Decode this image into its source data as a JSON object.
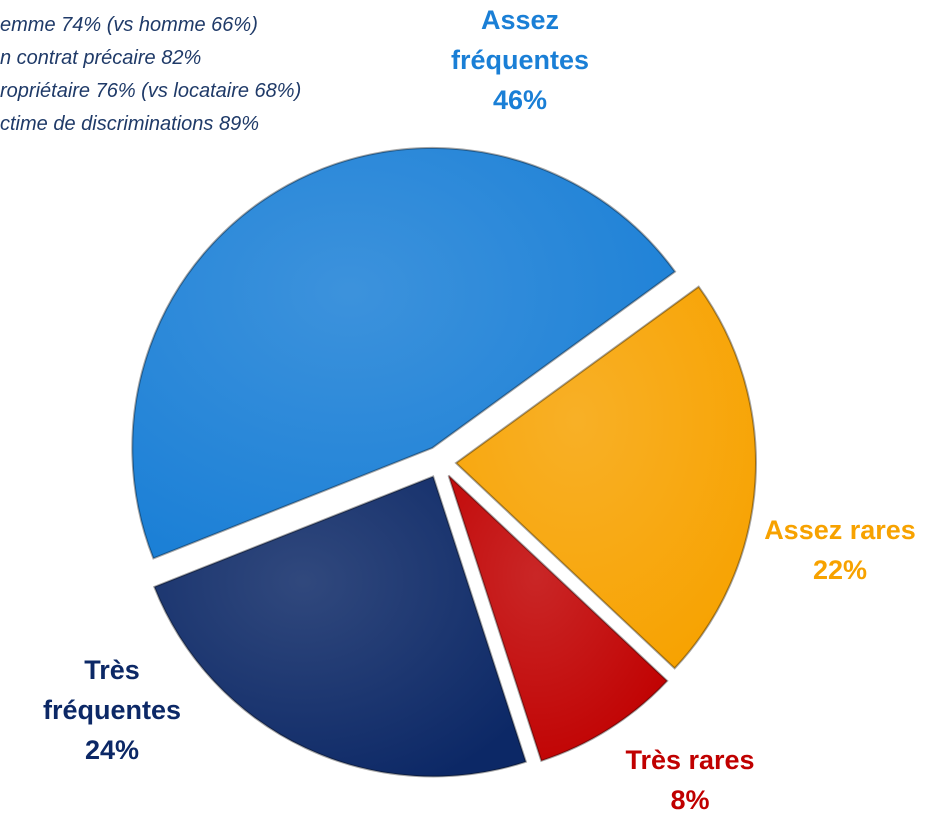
{
  "chart_data": {
    "type": "pie",
    "categories": [
      "Assez fréquentes",
      "Assez rares",
      "Très rares",
      "Très fréquentes"
    ],
    "values": [
      46,
      22,
      8,
      24
    ],
    "value_labels": [
      "46%",
      "22%",
      "8%",
      "24%"
    ],
    "colors": [
      "#1a7fd6",
      "#f7a200",
      "#c00000",
      "#0c2866"
    ],
    "annotations": [
      "emme 74% (vs homme 66%)",
      "n contrat précaire 82%",
      "ropriétaire 76% (vs locataire 68%)",
      "ctime de discriminations 89%"
    ]
  }
}
